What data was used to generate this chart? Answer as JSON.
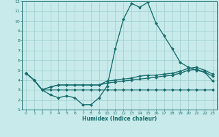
{
  "xlabel": "Humidex (Indice chaleur)",
  "ylabel": "",
  "xlim": [
    -0.5,
    23.5
  ],
  "ylim": [
    1,
    12
  ],
  "yticks": [
    1,
    2,
    3,
    4,
    5,
    6,
    7,
    8,
    9,
    10,
    11,
    12
  ],
  "xticks": [
    0,
    1,
    2,
    3,
    4,
    5,
    6,
    7,
    8,
    9,
    10,
    11,
    12,
    13,
    14,
    15,
    16,
    17,
    18,
    19,
    20,
    21,
    22,
    23
  ],
  "bg_color": "#c8eaea",
  "grid_color": "#9ecece",
  "line_color": "#1a6e6e",
  "line_width": 1.0,
  "marker": "D",
  "marker_size": 2.0,
  "series": [
    {
      "x": [
        0,
        1,
        2,
        3,
        4,
        5,
        6,
        7,
        8,
        9,
        10,
        11,
        12,
        13,
        14,
        15,
        16,
        17,
        18,
        19,
        20,
        21,
        22,
        23
      ],
      "y": [
        4.7,
        4.0,
        3.0,
        2.5,
        2.2,
        2.4,
        2.2,
        1.5,
        1.5,
        2.2,
        3.4,
        7.2,
        10.2,
        11.8,
        11.4,
        11.9,
        9.8,
        8.5,
        7.2,
        5.8,
        5.3,
        5.0,
        4.8,
        3.9
      ]
    },
    {
      "x": [
        0,
        1,
        2,
        3,
        4,
        5,
        6,
        7,
        8,
        9,
        10,
        11,
        12,
        13,
        14,
        15,
        16,
        17,
        18,
        19,
        20,
        21,
        22,
        23
      ],
      "y": [
        4.7,
        4.0,
        3.0,
        3.3,
        3.5,
        3.5,
        3.5,
        3.5,
        3.5,
        3.5,
        3.9,
        4.0,
        4.1,
        4.2,
        4.4,
        4.5,
        4.5,
        4.6,
        4.7,
        4.9,
        5.2,
        5.3,
        5.0,
        4.6
      ]
    },
    {
      "x": [
        0,
        1,
        2,
        3,
        4,
        5,
        6,
        7,
        8,
        9,
        10,
        11,
        12,
        13,
        14,
        15,
        16,
        17,
        18,
        19,
        20,
        21,
        22,
        23
      ],
      "y": [
        4.7,
        4.0,
        3.0,
        3.3,
        3.5,
        3.5,
        3.5,
        3.5,
        3.5,
        3.5,
        3.7,
        3.8,
        3.9,
        4.0,
        4.1,
        4.2,
        4.3,
        4.4,
        4.5,
        4.7,
        5.0,
        5.1,
        4.8,
        4.4
      ]
    },
    {
      "x": [
        0,
        1,
        2,
        3,
        4,
        5,
        6,
        7,
        8,
        9,
        10,
        11,
        12,
        13,
        14,
        15,
        16,
        17,
        18,
        19,
        20,
        21,
        22,
        23
      ],
      "y": [
        4.7,
        4.0,
        3.0,
        3.0,
        3.0,
        3.0,
        3.0,
        3.0,
        3.0,
        3.0,
        3.0,
        3.0,
        3.0,
        3.0,
        3.0,
        3.0,
        3.0,
        3.0,
        3.0,
        3.0,
        3.0,
        3.0,
        3.0,
        3.0
      ]
    }
  ]
}
